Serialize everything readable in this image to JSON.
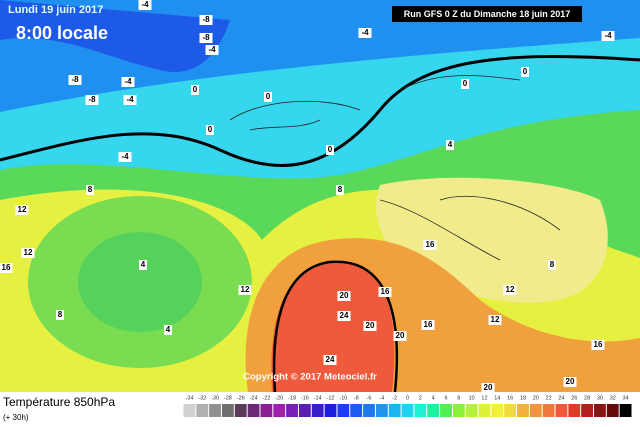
{
  "header": {
    "title": "Lundi 19 juin 2017",
    "subtitle": "8:00 locale",
    "run": "Run GFS 0 Z du Dimanche 18 juin 2017"
  },
  "map": {
    "copyright": "Copyright © 2017 Meteociel.fr",
    "labels": [
      -4,
      -8,
      -8,
      -4,
      -4,
      -4,
      -8,
      -4,
      -8,
      -4,
      0,
      0,
      0,
      0,
      0,
      0,
      -4,
      4,
      8,
      8,
      12,
      12,
      8,
      4,
      4,
      12,
      16,
      8,
      12,
      16,
      20,
      24,
      20,
      24,
      20,
      16,
      12,
      16,
      20,
      20,
      16
    ]
  },
  "footer": {
    "title": "Température 850hPa",
    "note": "(+ 30h)"
  },
  "legend": {
    "values": [
      -34,
      -32,
      -30,
      -28,
      -26,
      -24,
      -22,
      -20,
      -18,
      -16,
      -14,
      -12,
      -10,
      -8,
      -6,
      -4,
      -2,
      0,
      2,
      4,
      6,
      8,
      10,
      12,
      14,
      16,
      18,
      20,
      22,
      24,
      26,
      28,
      30,
      32,
      34
    ],
    "colors": [
      "#d0d0d0",
      "#b0b0b0",
      "#909090",
      "#707070",
      "#5a3c5a",
      "#6e2878",
      "#8c1e96",
      "#a01eb4",
      "#781eb4",
      "#5a1eb4",
      "#3c1ec8",
      "#1e1edc",
      "#1e3cf0",
      "#1e5af0",
      "#1e78f0",
      "#1e96f0",
      "#1eb4f0",
      "#1ed2f0",
      "#1ef0d2",
      "#1ef0a0",
      "#50f050",
      "#8cf03c",
      "#b4f03c",
      "#dcf03c",
      "#f0f03c",
      "#f0dc3c",
      "#f0b43c",
      "#f0963c",
      "#f0783c",
      "#f05a3c",
      "#dc3c28",
      "#b41e1e",
      "#8c1414",
      "#640a0a",
      "#000000"
    ]
  }
}
